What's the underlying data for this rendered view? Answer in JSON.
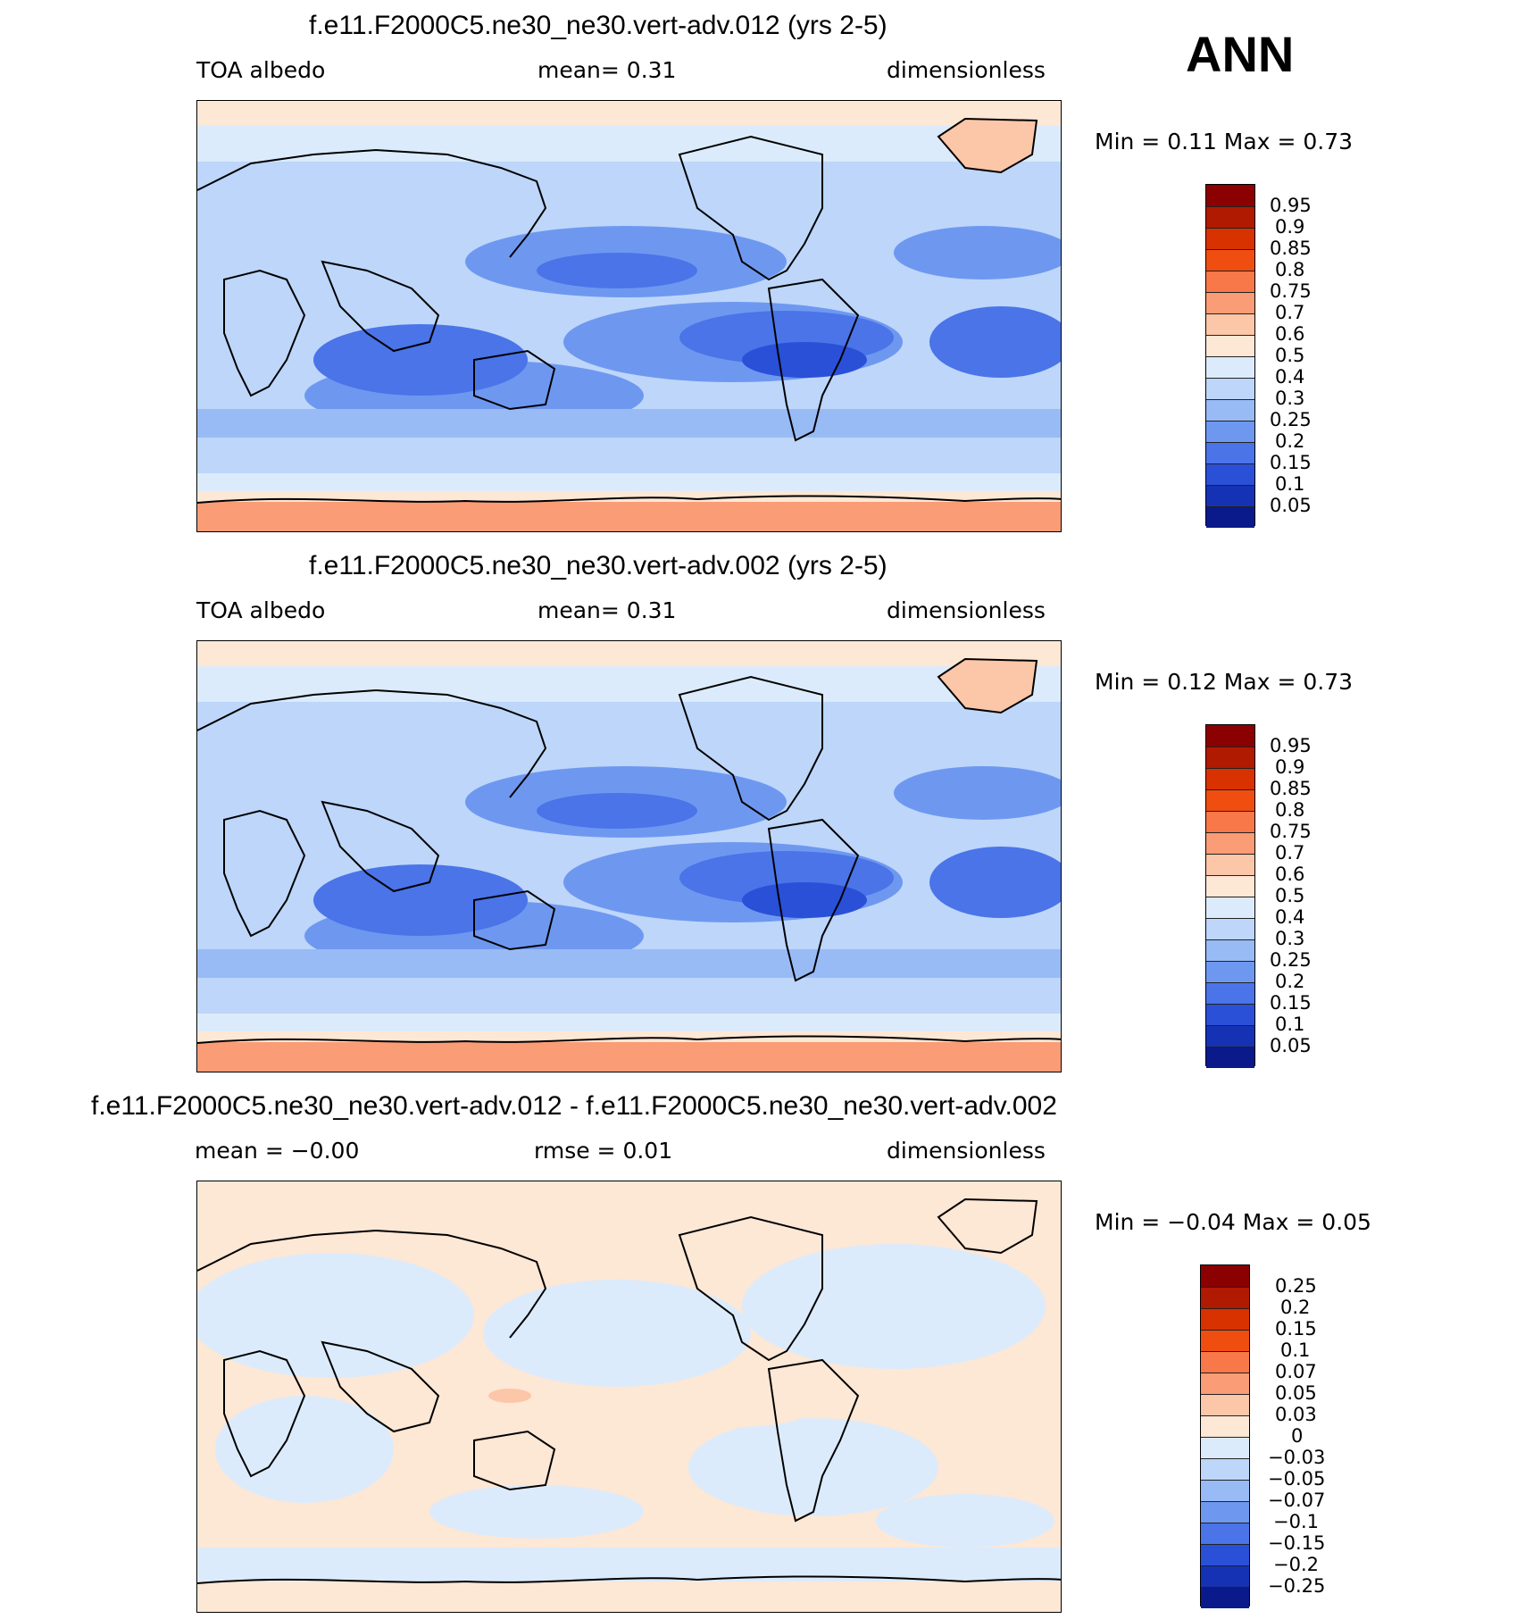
{
  "season_label": "ANN",
  "panels": [
    {
      "title": "f.e11.F2000C5.ne30_ne30.vert-adv.012 (yrs 2-5)",
      "left_label": "TOA albedo",
      "center_label": "mean=    0.31",
      "right_label": "dimensionless",
      "min_max": "Min =     0.11  Max =     0.73",
      "levels": [
        "0.95",
        "0.9",
        "0.85",
        "0.8",
        "0.75",
        "0.7",
        "0.6",
        "0.5",
        "0.4",
        "0.3",
        "0.25",
        "0.2",
        "0.15",
        "0.1",
        "0.05"
      ]
    },
    {
      "title": "f.e11.F2000C5.ne30_ne30.vert-adv.002 (yrs 2-5)",
      "left_label": "TOA albedo",
      "center_label": "mean=    0.31",
      "right_label": "dimensionless",
      "min_max": "Min =     0.12  Max =     0.73",
      "levels": [
        "0.95",
        "0.9",
        "0.85",
        "0.8",
        "0.75",
        "0.7",
        "0.6",
        "0.5",
        "0.4",
        "0.3",
        "0.25",
        "0.2",
        "0.15",
        "0.1",
        "0.05"
      ]
    },
    {
      "title": "f.e11.F2000C5.ne30_ne30.vert-adv.012 - f.e11.F2000C5.ne30_ne30.vert-adv.002",
      "left_label": "mean =   −0.00",
      "center_label": "rmse =    0.01",
      "right_label": "dimensionless",
      "min_max": "Min =   −0.04  Max =     0.05",
      "levels": [
        "0.25",
        "0.2",
        "0.15",
        "0.1",
        "0.07",
        "0.05",
        "0.03",
        "0",
        "−0.03",
        "−0.05",
        "−0.07",
        "−0.1",
        "−0.15",
        "−0.2",
        "−0.25"
      ]
    }
  ],
  "colors": {
    "colorbar": [
      "#8b0000",
      "#b01a00",
      "#d83200",
      "#f04d10",
      "#f8784a",
      "#fa9c76",
      "#fcc6a8",
      "#fde7d5",
      "#dcebfb",
      "#bdd6fa",
      "#98bbf6",
      "#6e98f0",
      "#4a74e8",
      "#2a50d8",
      "#1632b4",
      "#0a1a8a"
    ]
  }
}
